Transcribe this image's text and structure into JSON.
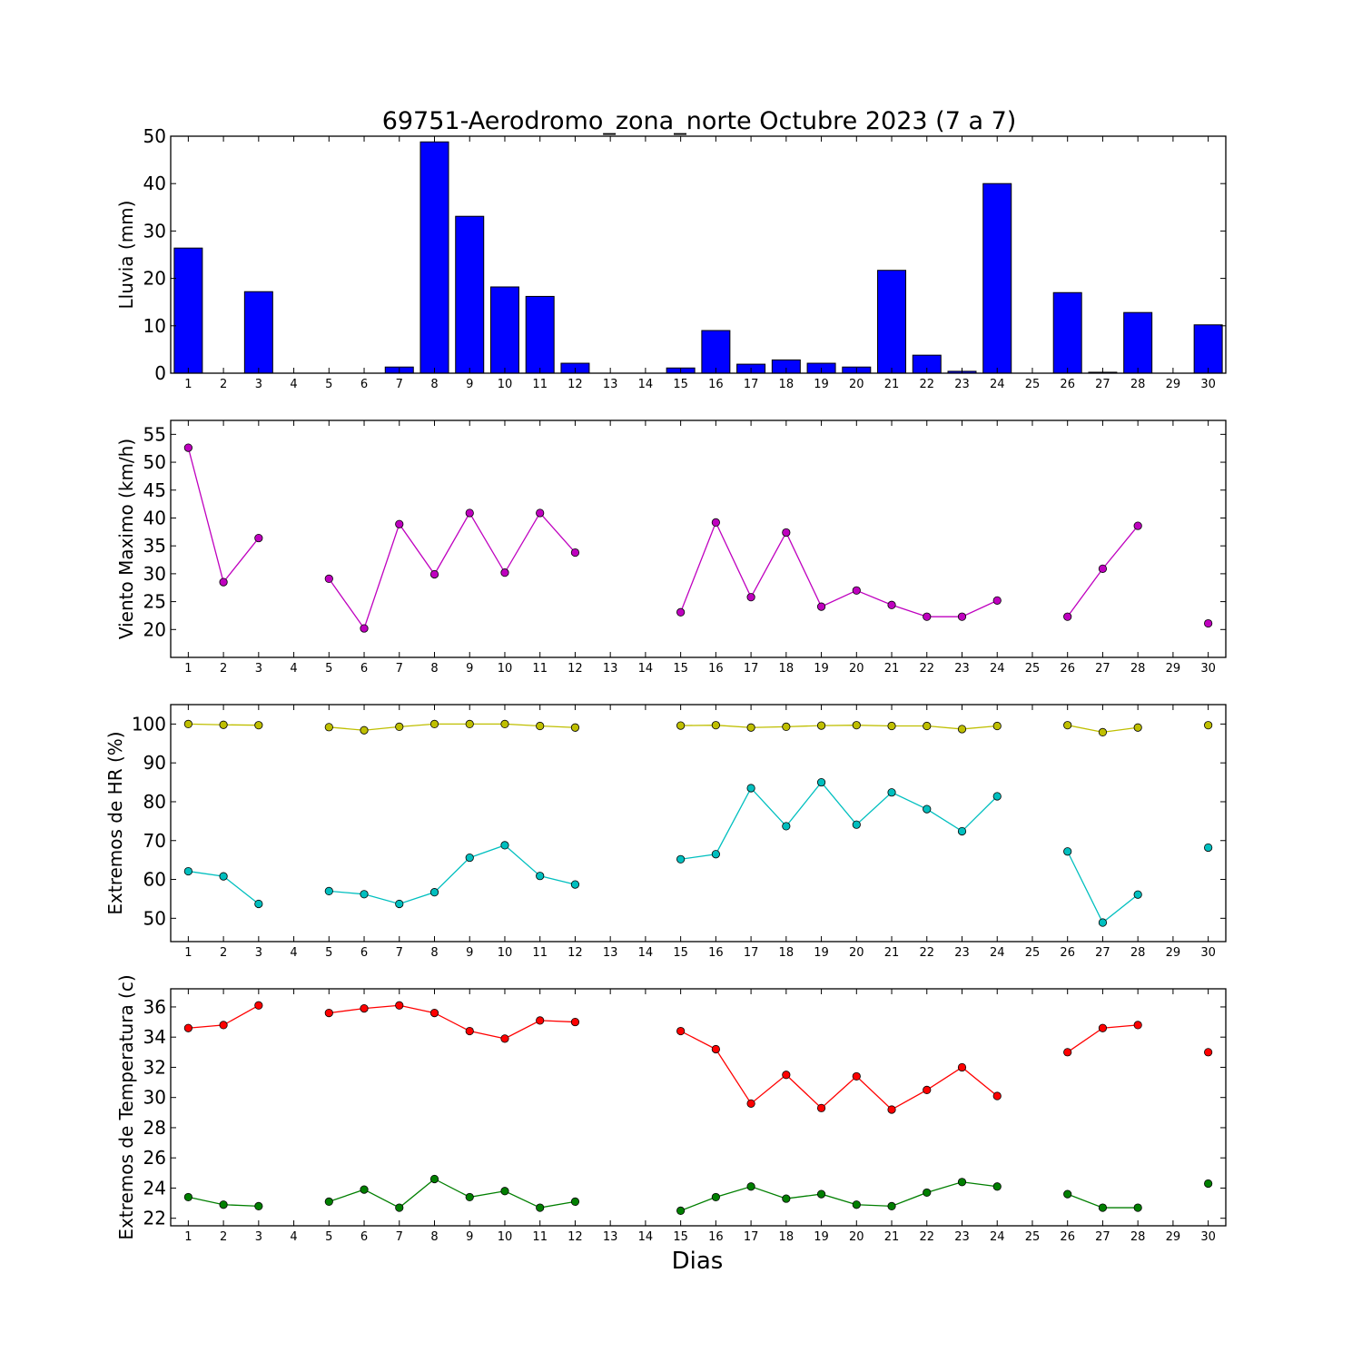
{
  "title": "69751-Aerodromo_zona_norte Octubre 2023  (7 a 7)",
  "xlabel": "Dias",
  "days": [
    1,
    2,
    3,
    4,
    5,
    6,
    7,
    8,
    9,
    10,
    11,
    12,
    13,
    14,
    15,
    16,
    17,
    18,
    19,
    20,
    21,
    22,
    23,
    24,
    25,
    26,
    27,
    28,
    29,
    30
  ],
  "chart_data": [
    {
      "type": "bar",
      "ylabel": "Lluvia (mm)",
      "ylim": [
        0,
        50
      ],
      "yticks": [
        0,
        10,
        20,
        30,
        40,
        50
      ],
      "xlim": [
        0.5,
        30.5
      ],
      "color": "#0000ff",
      "series": [
        {
          "x": [
            1,
            2,
            3,
            4,
            5,
            6,
            7,
            8,
            9,
            10,
            11,
            12,
            13,
            14,
            15,
            16,
            17,
            18,
            19,
            20,
            21,
            22,
            23,
            24,
            25,
            26,
            27,
            28,
            29,
            30
          ],
          "values": [
            26.4,
            0,
            17.2,
            0,
            0,
            0,
            1.3,
            48.8,
            33.1,
            18.2,
            16.2,
            2.1,
            0,
            0,
            1.1,
            9.0,
            1.9,
            2.8,
            2.1,
            1.3,
            21.7,
            3.8,
            0.4,
            40.0,
            0,
            17.0,
            0.2,
            12.8,
            0,
            10.2
          ]
        }
      ]
    },
    {
      "type": "line",
      "ylabel": "Viento Maximo (km/h)",
      "ylim": [
        15,
        57.5
      ],
      "yticks": [
        20,
        25,
        30,
        35,
        40,
        45,
        50,
        55
      ],
      "xlim": [
        0.5,
        30.5
      ],
      "series": [
        {
          "color": "#bf00bf",
          "x": [
            1,
            2,
            3,
            4,
            5,
            6,
            7,
            8,
            9,
            10,
            11,
            12,
            13,
            14,
            15,
            16,
            17,
            18,
            19,
            20,
            21,
            22,
            23,
            24,
            25,
            26,
            27,
            28,
            29,
            30
          ],
          "values": [
            52.6,
            28.5,
            36.4,
            null,
            29.1,
            20.2,
            38.9,
            29.9,
            40.9,
            30.2,
            40.9,
            33.8,
            null,
            null,
            23.1,
            39.2,
            25.8,
            37.4,
            24.1,
            27.0,
            24.4,
            22.3,
            22.3,
            25.2,
            null,
            22.3,
            30.9,
            38.6,
            null,
            21.1
          ]
        }
      ]
    },
    {
      "type": "line",
      "ylabel": "Extremos de HR (%)",
      "ylim": [
        44,
        105
      ],
      "yticks": [
        50,
        60,
        70,
        80,
        90,
        100
      ],
      "xlim": [
        0.5,
        30.5
      ],
      "series": [
        {
          "color": "#bfbf00",
          "x": [
            1,
            2,
            3,
            4,
            5,
            6,
            7,
            8,
            9,
            10,
            11,
            12,
            13,
            14,
            15,
            16,
            17,
            18,
            19,
            20,
            21,
            22,
            23,
            24,
            25,
            26,
            27,
            28,
            29,
            30
          ],
          "values": [
            100,
            99.8,
            99.7,
            null,
            99.2,
            98.4,
            99.3,
            100,
            100,
            100,
            99.5,
            99.1,
            null,
            null,
            99.6,
            99.7,
            99.1,
            99.3,
            99.6,
            99.7,
            99.5,
            99.5,
            98.7,
            99.5,
            null,
            99.7,
            97.9,
            99.1,
            null,
            99.7
          ]
        },
        {
          "color": "#00bfbf",
          "x": [
            1,
            2,
            3,
            4,
            5,
            6,
            7,
            8,
            9,
            10,
            11,
            12,
            13,
            14,
            15,
            16,
            17,
            18,
            19,
            20,
            21,
            22,
            23,
            24,
            25,
            26,
            27,
            28,
            29,
            30
          ],
          "values": [
            62.1,
            60.8,
            53.7,
            null,
            57.0,
            56.2,
            53.7,
            56.7,
            65.6,
            68.8,
            60.9,
            58.7,
            null,
            null,
            65.2,
            66.5,
            83.5,
            73.7,
            85.0,
            74.1,
            82.4,
            78.1,
            72.4,
            81.4,
            null,
            67.2,
            48.9,
            56.1,
            null,
            68.2
          ]
        }
      ]
    },
    {
      "type": "line",
      "ylabel": "Extremos de Temperatura (c)",
      "ylim": [
        21.5,
        37.2
      ],
      "yticks": [
        22,
        24,
        26,
        28,
        30,
        32,
        34,
        36
      ],
      "xlim": [
        0.5,
        30.5
      ],
      "series": [
        {
          "color": "#ff0000",
          "x": [
            1,
            2,
            3,
            4,
            5,
            6,
            7,
            8,
            9,
            10,
            11,
            12,
            13,
            14,
            15,
            16,
            17,
            18,
            19,
            20,
            21,
            22,
            23,
            24,
            25,
            26,
            27,
            28,
            29,
            30
          ],
          "values": [
            34.6,
            34.8,
            36.1,
            null,
            35.6,
            35.9,
            36.1,
            35.6,
            34.4,
            33.9,
            35.1,
            35.0,
            null,
            null,
            34.4,
            33.2,
            29.6,
            31.5,
            29.3,
            31.4,
            29.2,
            30.5,
            32.0,
            30.1,
            null,
            33.0,
            34.6,
            34.8,
            null,
            33.0
          ]
        },
        {
          "color": "#007f00",
          "x": [
            1,
            2,
            3,
            4,
            5,
            6,
            7,
            8,
            9,
            10,
            11,
            12,
            13,
            14,
            15,
            16,
            17,
            18,
            19,
            20,
            21,
            22,
            23,
            24,
            25,
            26,
            27,
            28,
            29,
            30
          ],
          "values": [
            23.4,
            22.9,
            22.8,
            null,
            23.1,
            23.9,
            22.7,
            24.6,
            23.4,
            23.8,
            22.7,
            23.1,
            null,
            null,
            22.5,
            23.4,
            24.1,
            23.3,
            23.6,
            22.9,
            22.8,
            23.7,
            24.4,
            24.1,
            null,
            23.6,
            22.7,
            22.7,
            null,
            24.3
          ]
        }
      ]
    }
  ]
}
